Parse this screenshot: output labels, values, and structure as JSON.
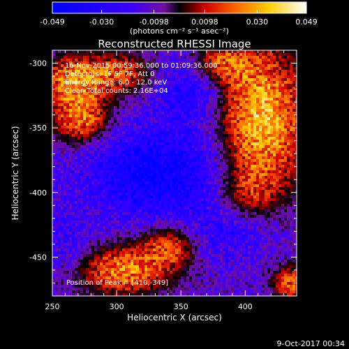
{
  "chart_data": {
    "type": "heatmap",
    "title": "Reconstructed RHESSI Image",
    "xlabel": "Heliocentric X (arcsec)",
    "ylabel": "Heliocentric Y (arcsec)",
    "xlim": [
      250,
      440
    ],
    "ylim": [
      -480,
      -290
    ],
    "x_ticks": [
      "250",
      "300",
      "350",
      "400"
    ],
    "x_tick_values": [
      250,
      300,
      350,
      400
    ],
    "y_ticks": [
      "-300",
      "-350",
      "-400",
      "-450"
    ],
    "y_tick_values": [
      -300,
      -350,
      -400,
      -450
    ],
    "colorbar": {
      "ticks": [
        "-0.049",
        "-0.030",
        "-0.0098",
        "0.0098",
        "0.030",
        "0.049"
      ],
      "tick_values": [
        -0.049,
        -0.03,
        -0.0098,
        0.0098,
        0.03,
        0.049
      ],
      "range": [
        -0.049,
        0.049
      ],
      "unit_label": "(photons cm⁻² s⁻¹ asec⁻²)"
    },
    "annotations": [
      "16-Nov-2015 00:59:36.000 to 01:09:36.000",
      "Detectors: 1F 5F 7F, Att 0",
      "Energy Range: 6.0 - 12.0 keV",
      "Clean   Total counts: 2.16E+04"
    ],
    "peak_label": "Position of Peak = [410,-349]",
    "peak_position": [
      410,
      -349
    ],
    "bright_sources": [
      {
        "x": 412,
        "y": -345,
        "amp": 0.046,
        "sx": 24,
        "sy": 42
      },
      {
        "x": 272,
        "y": -343,
        "amp": 0.038,
        "sx": 16,
        "sy": 14
      },
      {
        "x": 263,
        "y": -312,
        "amp": 0.033,
        "sx": 15,
        "sy": 13
      },
      {
        "x": 300,
        "y": -308,
        "amp": 0.03,
        "sx": 20,
        "sy": 12
      },
      {
        "x": 305,
        "y": -460,
        "amp": 0.037,
        "sx": 26,
        "sy": 14
      },
      {
        "x": 342,
        "y": -440,
        "amp": 0.028,
        "sx": 16,
        "sy": 12
      },
      {
        "x": 378,
        "y": -300,
        "amp": 0.026,
        "sx": 16,
        "sy": 11
      },
      {
        "x": 435,
        "y": -470,
        "amp": 0.03,
        "sx": 11,
        "sy": 10
      },
      {
        "x": 400,
        "y": -400,
        "amp": 0.015,
        "sx": 14,
        "sy": 14
      }
    ],
    "dark_sources": [
      {
        "x": 330,
        "y": -385,
        "amp": -0.034,
        "sx": 38,
        "sy": 24
      },
      {
        "x": 355,
        "y": -320,
        "amp": -0.022,
        "sx": 18,
        "sy": 18
      },
      {
        "x": 385,
        "y": -432,
        "amp": -0.016,
        "sx": 26,
        "sy": 14
      },
      {
        "x": 262,
        "y": -440,
        "amp": -0.012,
        "sx": 14,
        "sy": 16
      }
    ]
  },
  "footer": {
    "timestamp": "9-Oct-2017 00:34"
  }
}
